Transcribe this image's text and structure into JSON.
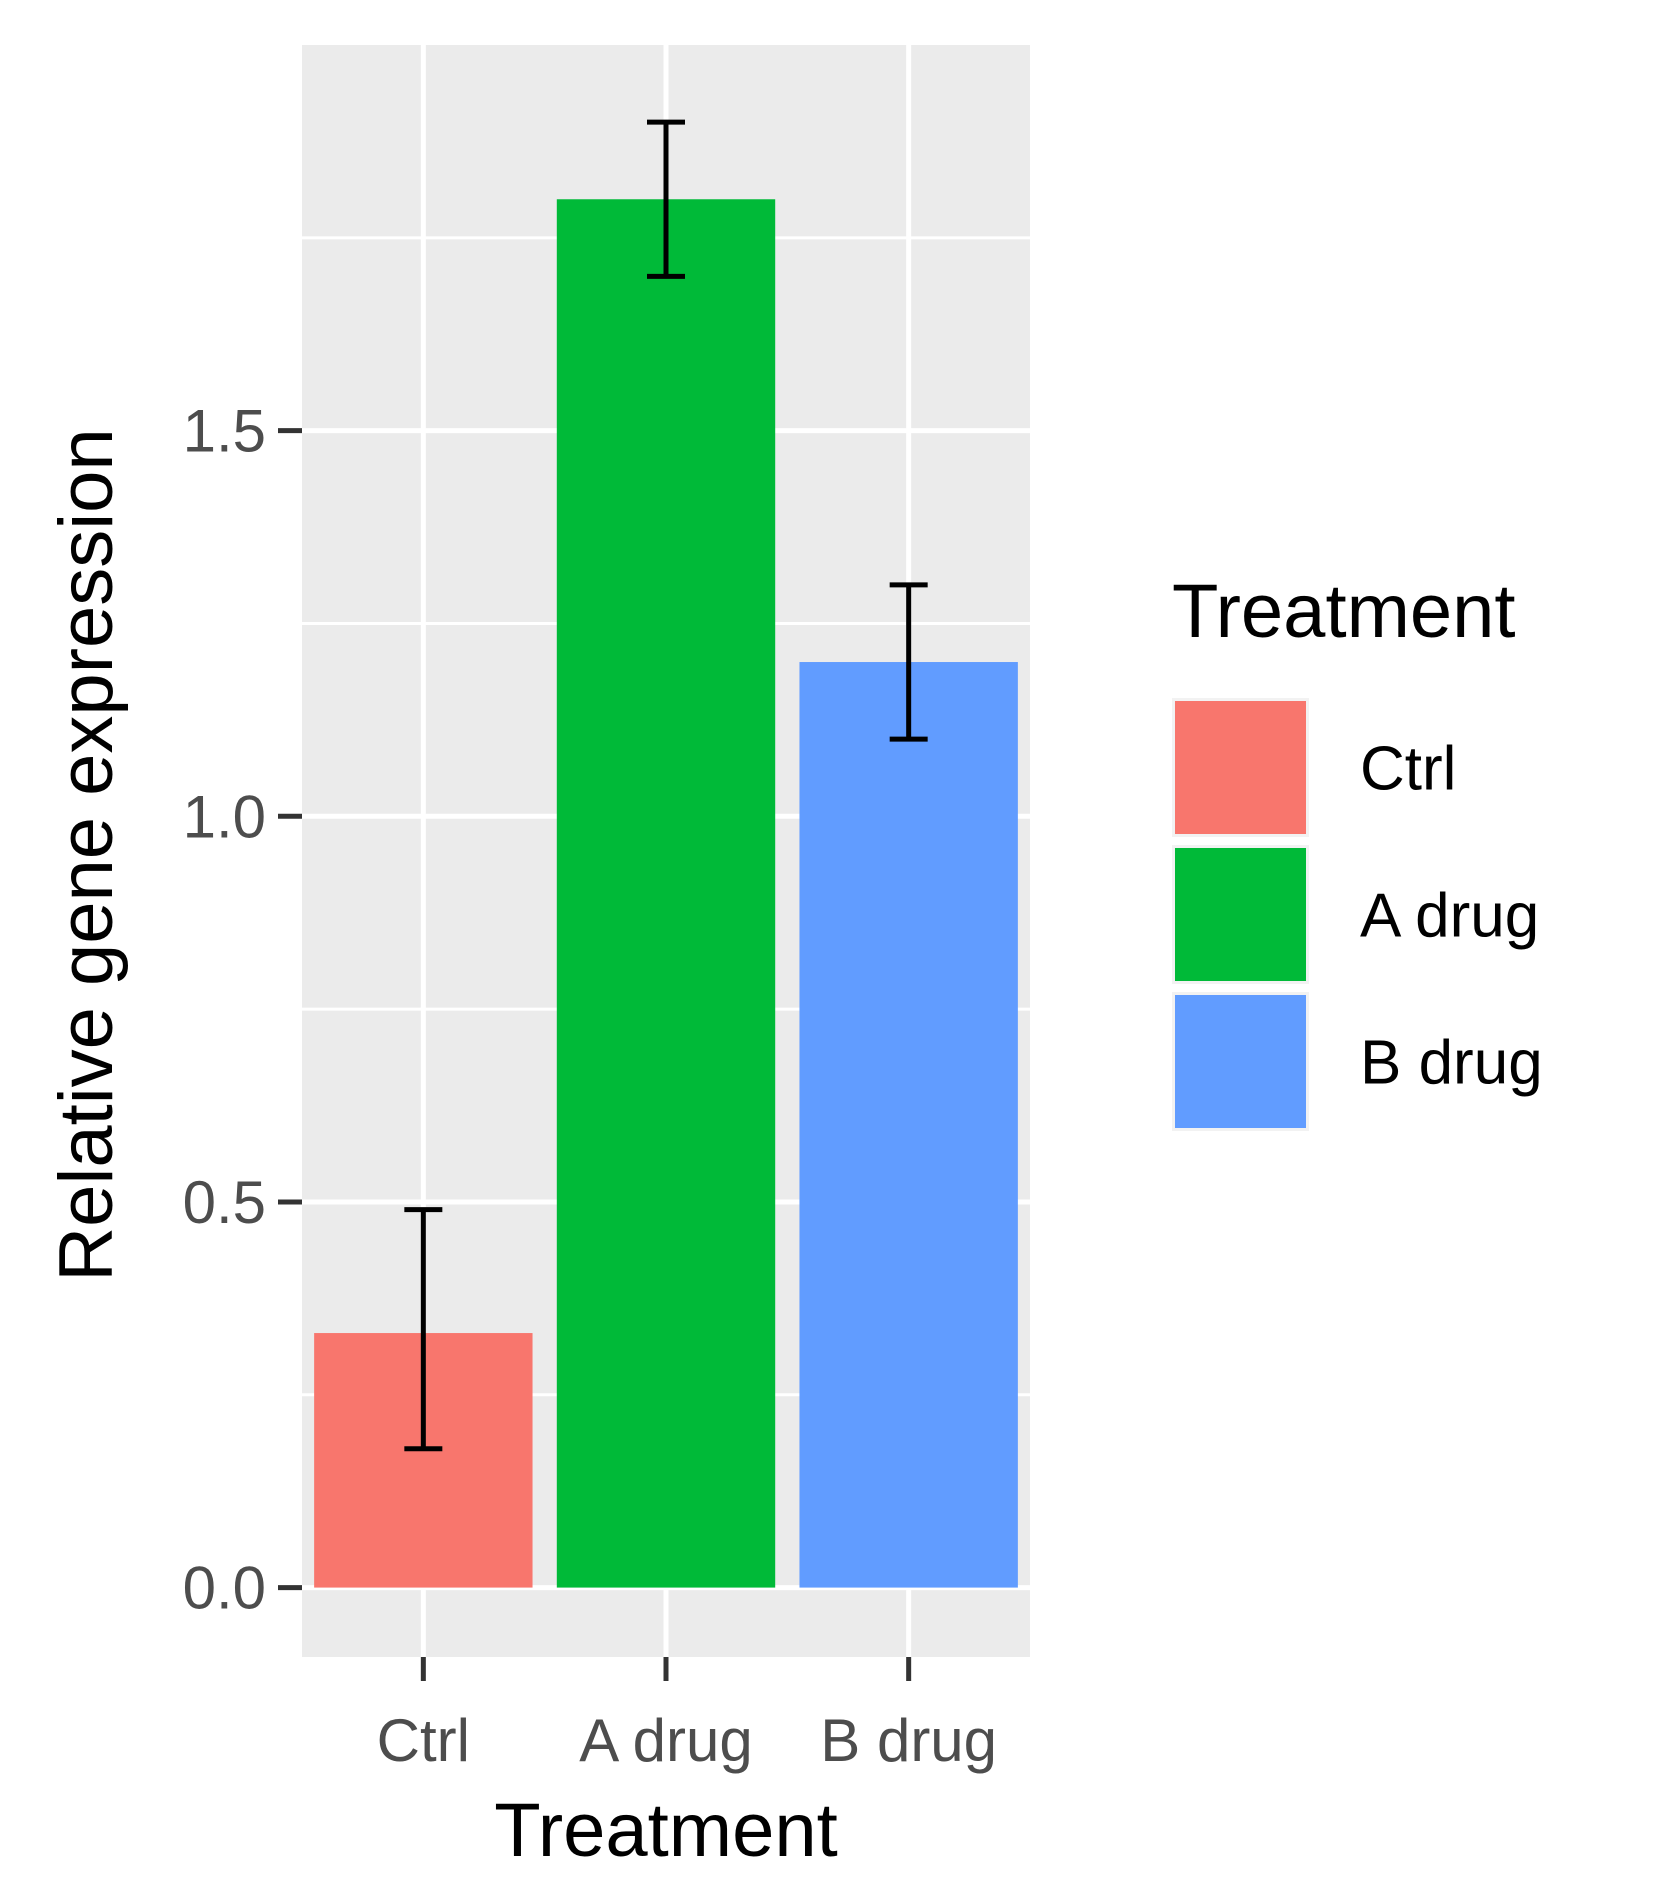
{
  "chart_data": {
    "type": "bar",
    "title": "",
    "xlabel": "Treatment",
    "ylabel": "Relative gene expression",
    "categories": [
      "Ctrl",
      "A drug",
      "B drug"
    ],
    "values": [
      0.33,
      1.8,
      1.2
    ],
    "error_bars": [
      {
        "low": 0.18,
        "high": 0.49
      },
      {
        "low": 1.7,
        "high": 1.9
      },
      {
        "low": 1.1,
        "high": 1.3
      }
    ],
    "colors": [
      "#F8766D",
      "#00BA38",
      "#619CFF"
    ],
    "ylim": [
      -0.09,
      2.0
    ],
    "yticks": [
      0.0,
      0.5,
      1.0,
      1.5
    ],
    "ytick_labels": [
      "0.0",
      "0.5",
      "1.0",
      "1.5"
    ],
    "grid": true,
    "legend": {
      "title": "Treatment",
      "placement": "right",
      "entries": [
        "Ctrl",
        "A drug",
        "B drug"
      ]
    }
  }
}
